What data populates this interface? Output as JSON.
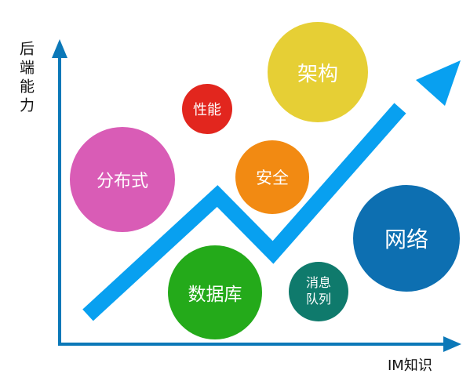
{
  "axes": {
    "y_label": "后端能力",
    "x_label": "IM知识"
  },
  "colors": {
    "axis": "#0b78b8",
    "arrow": "#08a0f0"
  },
  "skills": [
    {
      "id": "architecture",
      "label": "架构",
      "color": "#e6cf35"
    },
    {
      "id": "performance",
      "label": "性能",
      "color": "#e2261e"
    },
    {
      "id": "distributed",
      "label": "分布式",
      "color": "#d95cb6"
    },
    {
      "id": "security",
      "label": "安全",
      "color": "#f28a12"
    },
    {
      "id": "network",
      "label": "网络",
      "color": "#0d6fb1"
    },
    {
      "id": "database",
      "label": "数据库",
      "color": "#24aa1a"
    },
    {
      "id": "message-queue",
      "label": "消息\n队列",
      "color": "#0f7a6c"
    }
  ]
}
